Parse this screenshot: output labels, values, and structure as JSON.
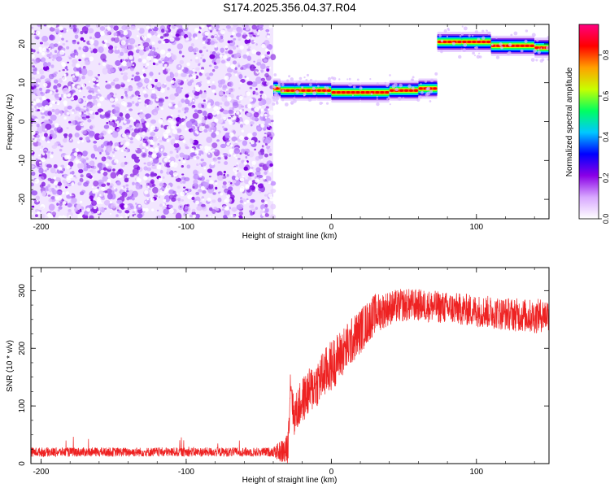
{
  "figure_title": "S174.2025.356.04.37.R04",
  "chart_data": [
    {
      "type": "heatmap",
      "title": "",
      "xlabel": "Height of straight line (km)",
      "ylabel": "Frequency (Hz)",
      "xlim": [
        -207,
        150
      ],
      "ylim": [
        -25,
        25
      ],
      "xticks": [
        -200,
        -100,
        0,
        100
      ],
      "yticks": [
        -20,
        -10,
        0,
        10,
        20
      ],
      "noise_region_x": [
        -207,
        -40
      ],
      "ridge": [
        {
          "x0": -40,
          "x1": -35,
          "f": 8.5
        },
        {
          "x0": -35,
          "x1": -25,
          "f": 8.0
        },
        {
          "x0": -25,
          "x1": -10,
          "f": 8.0
        },
        {
          "x0": -10,
          "x1": 0,
          "f": 8.0
        },
        {
          "x0": 0,
          "x1": 20,
          "f": 7.5
        },
        {
          "x0": 20,
          "x1": 40,
          "f": 7.5
        },
        {
          "x0": 40,
          "x1": 60,
          "f": 8.0
        },
        {
          "x0": 60,
          "x1": 73,
          "f": 8.5
        },
        {
          "x0": 73,
          "x1": 90,
          "f": 20.5
        },
        {
          "x0": 90,
          "x1": 110,
          "f": 20.5
        },
        {
          "x0": 110,
          "x1": 140,
          "f": 19.5
        },
        {
          "x0": 140,
          "x1": 150,
          "f": 19.0
        }
      ],
      "colorbar": {
        "label": "Normalized spectral amplitude",
        "ticks": [
          "0.0",
          "0.2",
          "0.4",
          "0.6",
          "0.8"
        ],
        "range": [
          0,
          0.95
        ],
        "colors": [
          "#ffffff",
          "#d8a8ff",
          "#8a00e6",
          "#0000ff",
          "#00c8ff",
          "#00ff60",
          "#c8ff00",
          "#ffa000",
          "#ff0000",
          "#ff0080"
        ]
      },
      "grid": false
    },
    {
      "type": "line",
      "title": "",
      "xlabel": "Height of straight line (km)",
      "ylabel": "SNR (10 * v/v)",
      "xlim": [
        -207,
        150
      ],
      "ylim": [
        0,
        340
      ],
      "xticks": [
        -200,
        -100,
        0,
        100
      ],
      "yticks": [
        0,
        100,
        200,
        300
      ],
      "color": "#ee2222",
      "envelope": {
        "x": [
          -207,
          -40,
          -30,
          -28,
          -26,
          -20,
          -10,
          0,
          10,
          20,
          30,
          40,
          50,
          60,
          80,
          100,
          120,
          140,
          150
        ],
        "y": [
          20,
          20,
          22,
          150,
          80,
          110,
          140,
          170,
          200,
          230,
          260,
          270,
          275,
          275,
          270,
          265,
          260,
          255,
          260
        ]
      },
      "spread": {
        "x": [
          -207,
          -40,
          -30,
          -20,
          0,
          20,
          40,
          60,
          100,
          150
        ],
        "y": [
          8,
          8,
          30,
          40,
          45,
          40,
          30,
          28,
          28,
          30
        ]
      },
      "grid": false
    }
  ]
}
